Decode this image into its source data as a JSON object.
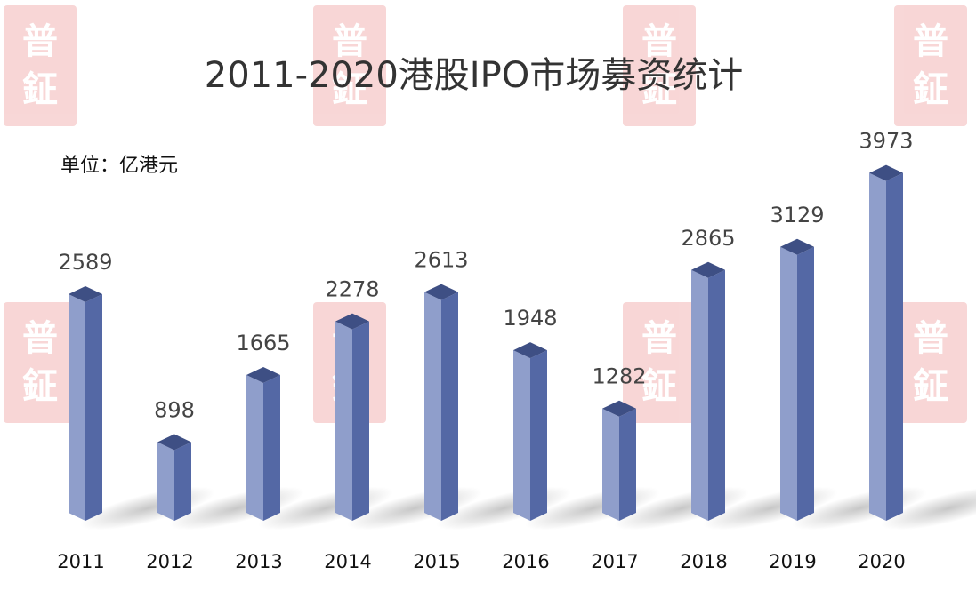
{
  "chart_data": {
    "type": "bar",
    "title": "2011-2020港股IPO市场募资统计",
    "unit_label": "单位：亿港元",
    "categories": [
      "2011",
      "2012",
      "2013",
      "2014",
      "2015",
      "2016",
      "2017",
      "2018",
      "2019",
      "2020"
    ],
    "values": [
      2589,
      898,
      1665,
      2278,
      2613,
      1948,
      1282,
      2865,
      3129,
      3973
    ],
    "data_labels": [
      "2589",
      "898",
      "1665",
      "2278",
      "2613",
      "1948",
      "1282",
      "2865",
      "3129",
      "3973"
    ],
    "ylim": [
      0,
      4000
    ],
    "grid": false,
    "legend": "none",
    "colors": {
      "bar_front": "#8f9ecb",
      "bar_side": "#5468a5",
      "bar_top": "#3e4f84"
    }
  },
  "watermark": {
    "text_top": "普",
    "text_bottom": "鉦"
  }
}
